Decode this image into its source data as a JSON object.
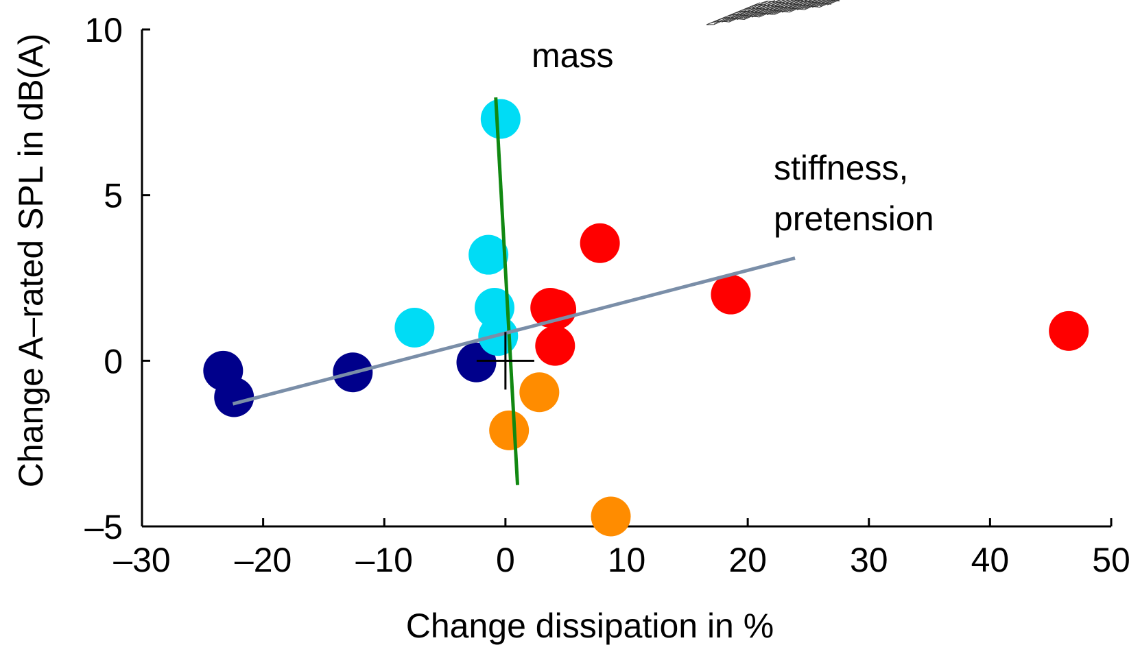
{
  "chart_data": {
    "type": "scatter",
    "xlabel": "Change dissipation in %",
    "ylabel": "Change A–rated SPL in dB(A)",
    "xlim": [
      -30,
      50
    ],
    "ylim": [
      -5,
      10
    ],
    "xticks": [
      -30,
      -20,
      -10,
      0,
      10,
      20,
      30,
      40,
      50
    ],
    "yticks": [
      -5,
      0,
      5,
      10
    ],
    "xtick_labels": [
      "–30",
      "–20",
      "–10",
      "0",
      "10",
      "20",
      "30",
      "40",
      "50"
    ],
    "ytick_labels": [
      "–5",
      "0",
      "5",
      "10"
    ],
    "grid": false,
    "legend": "none",
    "series": [
      {
        "color": "#00008b",
        "points": [
          [
            -23.3,
            -0.3
          ],
          [
            -22.4,
            -1.1
          ],
          [
            -12.6,
            -0.35
          ],
          [
            -2.4,
            -0.05
          ]
        ]
      },
      {
        "color": "#00dcf5",
        "points": [
          [
            -0.4,
            7.3
          ],
          [
            -1.4,
            3.2
          ],
          [
            -0.9,
            1.6
          ],
          [
            -7.5,
            1.0
          ],
          [
            -0.6,
            0.75
          ]
        ]
      },
      {
        "color": "#ff0000",
        "points": [
          [
            7.8,
            3.55
          ],
          [
            18.6,
            2.0
          ],
          [
            46.5,
            0.9
          ],
          [
            3.7,
            1.6
          ],
          [
            4.2,
            1.55
          ],
          [
            4.1,
            0.45
          ]
        ]
      },
      {
        "color": "#ff8c00",
        "points": [
          [
            2.8,
            -0.95
          ],
          [
            0.3,
            -2.1
          ],
          [
            8.7,
            -4.7
          ]
        ]
      }
    ],
    "lines": [
      {
        "color": "#118811",
        "x": [
          -0.8,
          1.0
        ],
        "y": [
          7.95,
          -3.75
        ]
      },
      {
        "color": "#7a8ea8",
        "x": [
          -22.5,
          23.9
        ],
        "y": [
          -1.3,
          3.1
        ]
      }
    ],
    "origin_marker": {
      "x": 0,
      "y": 0
    },
    "annotations": [
      "mass",
      "stiffness,",
      "pretension"
    ]
  }
}
